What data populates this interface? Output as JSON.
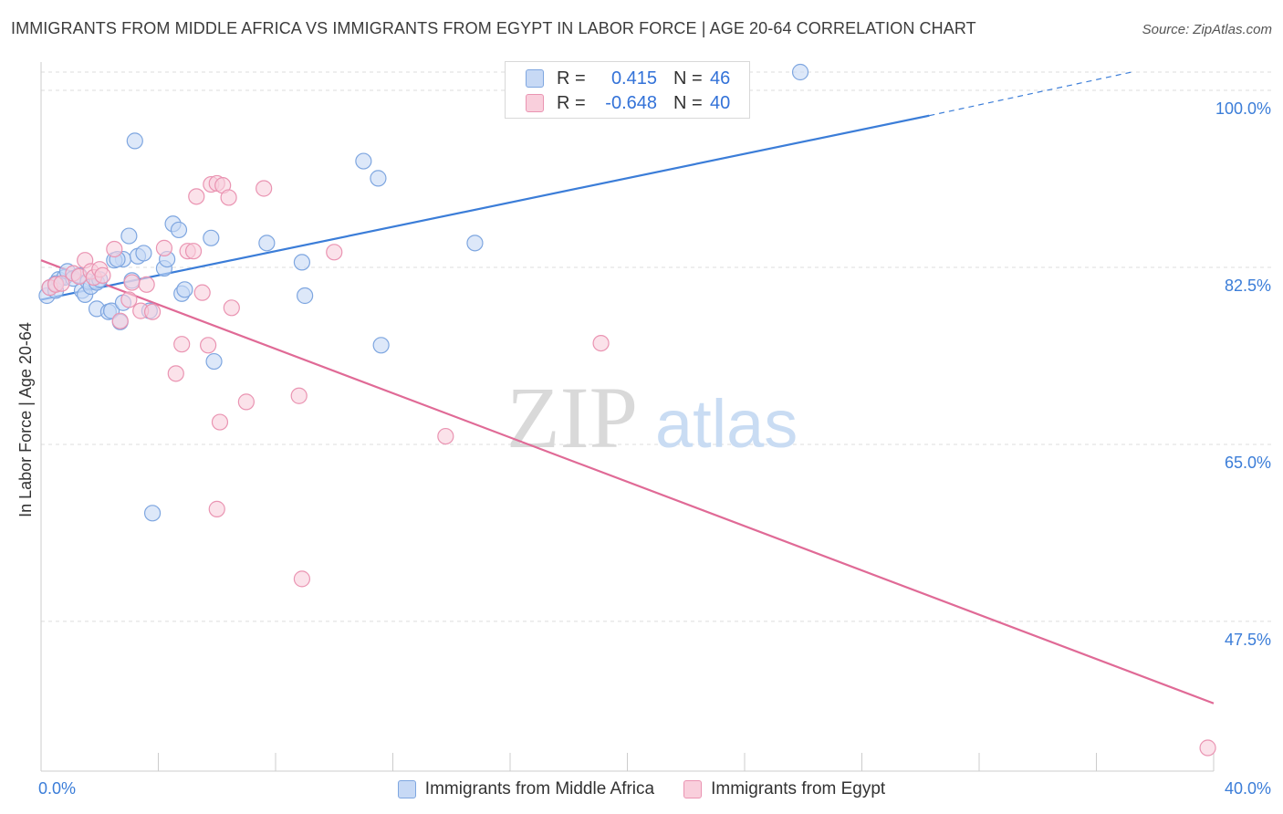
{
  "title": "IMMIGRANTS FROM MIDDLE AFRICA VS IMMIGRANTS FROM EGYPT IN LABOR FORCE | AGE 20-64 CORRELATION CHART",
  "source_label": "Source:",
  "source_value": "ZipAtlas.com",
  "watermark": {
    "zip": "ZIP",
    "atlas": "atlas"
  },
  "colors": {
    "blue": "#3b7dd8",
    "blue_fill": "#c7d9f5",
    "blue_stroke": "#7ea6e0",
    "pink": "#e06a96",
    "pink_fill": "#f9cfdc",
    "pink_stroke": "#ea94b2",
    "grid": "#dddddd",
    "axis_label": "#3b7dd8"
  },
  "legend_box": {
    "rows": [
      {
        "r_label": "R =",
        "r_value": "0.415",
        "n_label": "N =",
        "n_value": "46",
        "series": "blue"
      },
      {
        "r_label": "R =",
        "r_value": "-0.648",
        "n_label": "N =",
        "n_value": "40",
        "series": "pink"
      }
    ]
  },
  "chart_data": {
    "type": "scatter",
    "title": "IMMIGRANTS FROM MIDDLE AFRICA VS IMMIGRANTS FROM EGYPT IN LABOR FORCE | AGE 20-64 CORRELATION CHART",
    "xlabel": "",
    "ylabel": "In Labor Force | Age 20-64",
    "xlim": [
      0,
      40
    ],
    "ylim": [
      32.7,
      101.8
    ],
    "x_tick_labels": [
      {
        "value": 0,
        "label": "0.0%"
      },
      {
        "value": 40,
        "label": "40.0%"
      }
    ],
    "x_minor_ticks": [
      4,
      8,
      12,
      16,
      20,
      24,
      28,
      32,
      36
    ],
    "y_ticks": [
      {
        "value": 100.0,
        "label": "100.0%"
      },
      {
        "value": 82.5,
        "label": "82.5%"
      },
      {
        "value": 65.0,
        "label": "65.0%"
      },
      {
        "value": 47.5,
        "label": "47.5%"
      }
    ],
    "grid": true,
    "legend_position": "bottom-center",
    "series": [
      {
        "name": "Immigrants from Middle Africa",
        "color": "blue",
        "r": 0.415,
        "n": 46,
        "trend": {
          "x1": 0,
          "y1": 79.3,
          "x2": 30.3,
          "y2": 97.5,
          "dashed_to_x": 37.2,
          "dashed_to_y": 101.8
        },
        "points": [
          [
            0.2,
            79.7
          ],
          [
            0.3,
            80.5
          ],
          [
            0.5,
            80.2
          ],
          [
            0.6,
            81.3
          ],
          [
            0.8,
            81.5
          ],
          [
            0.9,
            82.1
          ],
          [
            1.1,
            81.4
          ],
          [
            1.3,
            81.7
          ],
          [
            1.4,
            80.2
          ],
          [
            1.5,
            79.8
          ],
          [
            1.6,
            81.1
          ],
          [
            1.7,
            80.6
          ],
          [
            1.9,
            81.0
          ],
          [
            2.0,
            81.3
          ],
          [
            1.9,
            78.4
          ],
          [
            2.3,
            78.1
          ],
          [
            2.4,
            78.2
          ],
          [
            2.8,
            83.3
          ],
          [
            2.5,
            83.2
          ],
          [
            2.6,
            83.3
          ],
          [
            2.7,
            77.1
          ],
          [
            2.8,
            79.0
          ],
          [
            3.0,
            85.6
          ],
          [
            3.1,
            81.2
          ],
          [
            3.2,
            95.0
          ],
          [
            3.3,
            83.6
          ],
          [
            3.5,
            83.9
          ],
          [
            3.7,
            78.2
          ],
          [
            4.2,
            82.4
          ],
          [
            4.3,
            83.3
          ],
          [
            4.5,
            86.8
          ],
          [
            4.7,
            86.2
          ],
          [
            4.8,
            79.9
          ],
          [
            4.9,
            80.3
          ],
          [
            5.8,
            85.4
          ],
          [
            5.9,
            73.2
          ],
          [
            7.7,
            84.9
          ],
          [
            8.9,
            83.0
          ],
          [
            9.0,
            79.7
          ],
          [
            11.0,
            93.0
          ],
          [
            11.5,
            91.3
          ],
          [
            11.6,
            74.8
          ],
          [
            14.8,
            84.9
          ],
          [
            25.9,
            101.8
          ],
          [
            3.8,
            58.2
          ],
          [
            0.5,
            80.9
          ]
        ]
      },
      {
        "name": "Immigrants from Egypt",
        "color": "pink",
        "r": -0.648,
        "n": 40,
        "trend": {
          "x1": 0,
          "y1": 83.2,
          "x2": 40,
          "y2": 39.4
        },
        "points": [
          [
            0.3,
            80.5
          ],
          [
            0.5,
            80.8
          ],
          [
            0.7,
            80.9
          ],
          [
            1.1,
            81.9
          ],
          [
            1.3,
            81.6
          ],
          [
            1.5,
            83.2
          ],
          [
            1.7,
            82.1
          ],
          [
            1.8,
            81.5
          ],
          [
            2.0,
            82.3
          ],
          [
            2.1,
            81.7
          ],
          [
            2.5,
            84.3
          ],
          [
            2.7,
            77.2
          ],
          [
            3.1,
            81.0
          ],
          [
            3.0,
            79.3
          ],
          [
            3.4,
            78.2
          ],
          [
            3.6,
            80.8
          ],
          [
            3.8,
            78.1
          ],
          [
            4.2,
            84.4
          ],
          [
            4.6,
            72.0
          ],
          [
            4.8,
            74.9
          ],
          [
            5.0,
            84.1
          ],
          [
            5.2,
            84.1
          ],
          [
            5.3,
            89.5
          ],
          [
            5.5,
            80.0
          ],
          [
            5.7,
            74.8
          ],
          [
            5.8,
            90.7
          ],
          [
            6.0,
            90.8
          ],
          [
            6.2,
            90.6
          ],
          [
            6.4,
            89.4
          ],
          [
            6.0,
            58.6
          ],
          [
            6.1,
            67.2
          ],
          [
            6.5,
            78.5
          ],
          [
            7.0,
            69.2
          ],
          [
            7.6,
            90.3
          ],
          [
            8.8,
            69.8
          ],
          [
            8.9,
            51.7
          ],
          [
            10.0,
            84.0
          ],
          [
            13.8,
            65.8
          ],
          [
            19.1,
            75.0
          ],
          [
            39.8,
            35.0
          ]
        ]
      }
    ]
  }
}
